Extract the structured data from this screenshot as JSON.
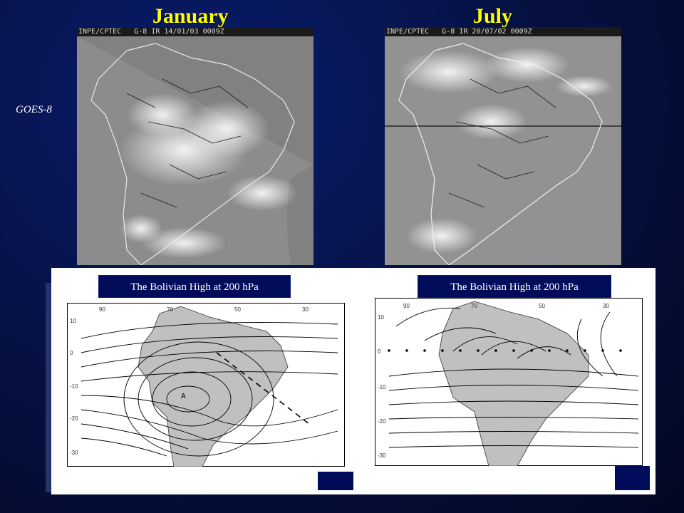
{
  "titles": {
    "january": "January",
    "july": "July"
  },
  "side_label": "GOES-8",
  "satellite": {
    "january": {
      "header": "INPE/CPTEC   G-8 IR 14/01/03 0009Z"
    },
    "july": {
      "header": "INPE/CPTEC   G-8 IR 20/07/02 0009Z"
    }
  },
  "maps": {
    "left": {
      "label": "The Bolivian High at 200 hPa",
      "center_marker": "A",
      "lon_ticks": [
        "90",
        "70",
        "50",
        "30"
      ],
      "lat_ticks": [
        "10",
        "0",
        "-10",
        "-20",
        "-30"
      ]
    },
    "right": {
      "label": "The Bolivian High at 200 hPa",
      "lon_ticks": [
        "90",
        "70",
        "50",
        "30"
      ],
      "lat_ticks": [
        "10",
        "0",
        "-10",
        "-20",
        "-30"
      ]
    }
  },
  "colors": {
    "title": "#ffff00",
    "background": "#061246",
    "label_box": "#000c5a"
  }
}
